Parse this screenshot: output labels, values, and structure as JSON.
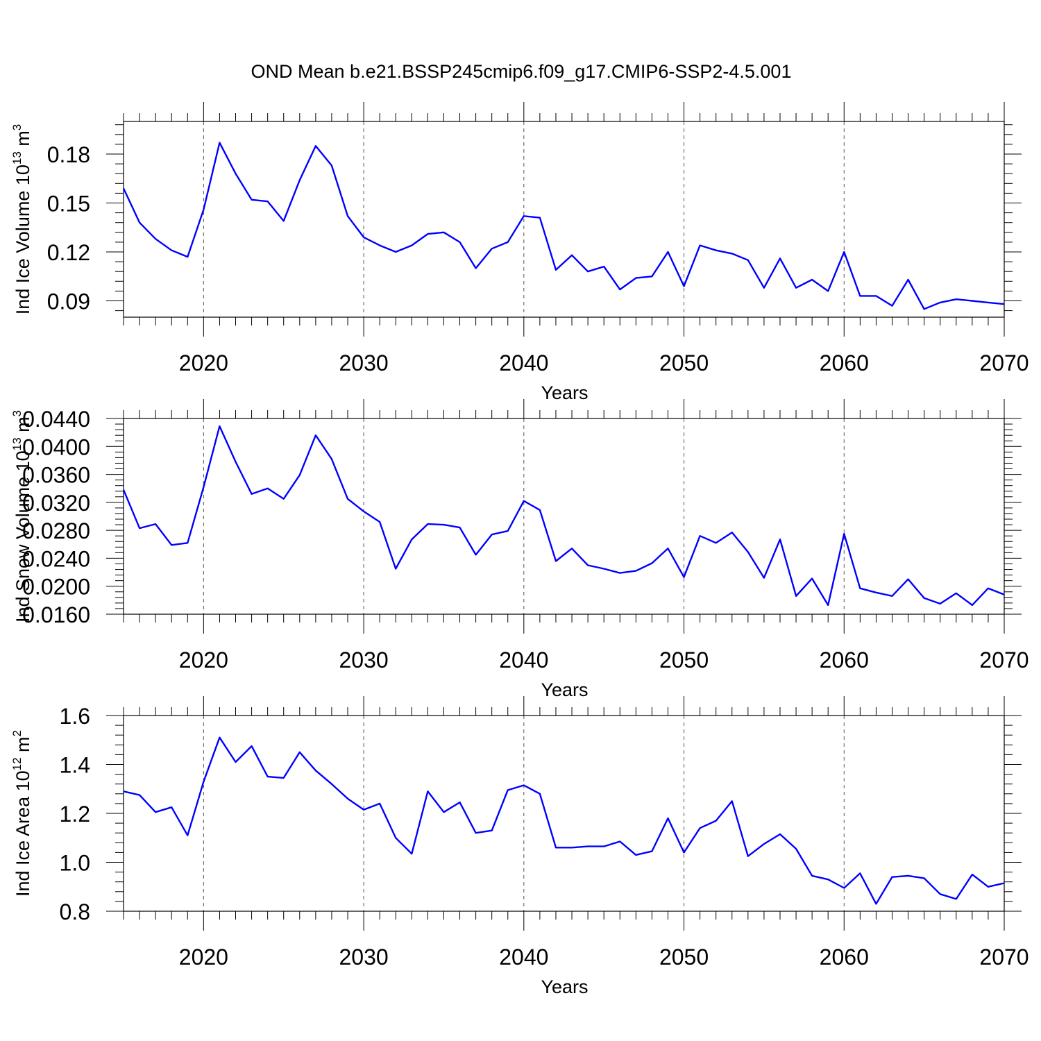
{
  "title": "OND Mean b.e21.BSSP245cmip6.f09_g17.CMIP6-SSP2-4.5.001",
  "colors": {
    "line": "#0000ff",
    "axes": "#000000",
    "grid": "#555555"
  },
  "chart_data": [
    {
      "type": "line",
      "ylabel": "Ind Ice Volume 10",
      "ylabel_exponent": "13",
      "ylabel_unit": " m",
      "ylabel_unit_exponent": "3",
      "xlabel": "Years",
      "xlim": [
        2015,
        2070
      ],
      "ylim": [
        0.08,
        0.2
      ],
      "xticks": [
        2020,
        2030,
        2040,
        2050,
        2060,
        2070
      ],
      "yticks": [
        0.09,
        0.12,
        0.15,
        0.18
      ],
      "ytick_labels": [
        "0.09",
        "0.12",
        "0.15",
        "0.18"
      ],
      "grid": "vertical dashed at major x ticks",
      "series": [
        {
          "x": [
            2015,
            2016,
            2017,
            2018,
            2019,
            2020,
            2021,
            2022,
            2023,
            2024,
            2025,
            2026,
            2027,
            2028,
            2029,
            2030,
            2031,
            2032,
            2033,
            2034,
            2035,
            2036,
            2037,
            2038,
            2039,
            2040,
            2041,
            2042,
            2043,
            2044,
            2045,
            2046,
            2047,
            2048,
            2049,
            2050,
            2051,
            2052,
            2053,
            2054,
            2055,
            2056,
            2057,
            2058,
            2059,
            2060,
            2061,
            2062,
            2063,
            2064,
            2065,
            2066,
            2067,
            2068,
            2069,
            2070
          ],
          "values": [
            0.159,
            0.138,
            0.128,
            0.121,
            0.117,
            0.146,
            0.187,
            0.168,
            0.152,
            0.151,
            0.139,
            0.164,
            0.185,
            0.173,
            0.142,
            0.129,
            0.124,
            0.12,
            0.124,
            0.131,
            0.132,
            0.126,
            0.11,
            0.122,
            0.126,
            0.142,
            0.141,
            0.109,
            0.118,
            0.108,
            0.111,
            0.097,
            0.104,
            0.105,
            0.12,
            0.099,
            0.124,
            0.121,
            0.119,
            0.115,
            0.098,
            0.116,
            0.098,
            0.103,
            0.096,
            0.12,
            0.093,
            0.093,
            0.087,
            0.103,
            0.085,
            0.089,
            0.091,
            0.09,
            0.089,
            0.088
          ]
        }
      ]
    },
    {
      "type": "line",
      "ylabel": "Ind Snow Volume 10",
      "ylabel_exponent": "13",
      "ylabel_unit": " m",
      "ylabel_unit_exponent": "3",
      "xlabel": "Years",
      "xlim": [
        2015,
        2070
      ],
      "ylim": [
        0.016,
        0.044
      ],
      "xticks": [
        2020,
        2030,
        2040,
        2050,
        2060,
        2070
      ],
      "yticks": [
        0.016,
        0.02,
        0.024,
        0.028,
        0.032,
        0.036,
        0.04,
        0.044
      ],
      "ytick_labels": [
        "0.0160",
        "0.0200",
        "0.0240",
        "0.0280",
        "0.0320",
        "0.0360",
        "0.0400",
        "0.0440"
      ],
      "grid": "vertical dashed at major x ticks",
      "series": [
        {
          "x": [
            2015,
            2016,
            2017,
            2018,
            2019,
            2020,
            2021,
            2022,
            2023,
            2024,
            2025,
            2026,
            2027,
            2028,
            2029,
            2030,
            2031,
            2032,
            2033,
            2034,
            2035,
            2036,
            2037,
            2038,
            2039,
            2040,
            2041,
            2042,
            2043,
            2044,
            2045,
            2046,
            2047,
            2048,
            2049,
            2050,
            2051,
            2052,
            2053,
            2054,
            2055,
            2056,
            2057,
            2058,
            2059,
            2060,
            2061,
            2062,
            2063,
            2064,
            2065,
            2066,
            2067,
            2068,
            2069,
            2070
          ],
          "values": [
            0.0338,
            0.0283,
            0.0289,
            0.0259,
            0.0262,
            0.0342,
            0.0429,
            0.0378,
            0.0332,
            0.034,
            0.0325,
            0.0359,
            0.0416,
            0.0382,
            0.0325,
            0.0307,
            0.0292,
            0.0225,
            0.0267,
            0.0289,
            0.0288,
            0.0284,
            0.0245,
            0.0274,
            0.0279,
            0.0322,
            0.0309,
            0.0236,
            0.0254,
            0.023,
            0.0225,
            0.0219,
            0.0222,
            0.0233,
            0.0254,
            0.0213,
            0.0272,
            0.0262,
            0.0277,
            0.0249,
            0.0212,
            0.0267,
            0.0186,
            0.0211,
            0.0173,
            0.0275,
            0.0197,
            0.0191,
            0.0186,
            0.021,
            0.0183,
            0.0175,
            0.019,
            0.0173,
            0.0197,
            0.0188
          ]
        }
      ]
    },
    {
      "type": "line",
      "ylabel": "Ind Ice Area 10",
      "ylabel_exponent": "12",
      "ylabel_unit": " m",
      "ylabel_unit_exponent": "2",
      "xlabel": "Years",
      "xlim": [
        2015,
        2070
      ],
      "ylim": [
        0.8,
        1.6
      ],
      "xticks": [
        2020,
        2030,
        2040,
        2050,
        2060,
        2070
      ],
      "yticks": [
        0.8,
        1.0,
        1.2,
        1.4,
        1.6
      ],
      "ytick_labels": [
        "0.8",
        "1.0",
        "1.2",
        "1.4",
        "1.6"
      ],
      "grid": "vertical dashed at major x ticks",
      "series": [
        {
          "x": [
            2015,
            2016,
            2017,
            2018,
            2019,
            2020,
            2021,
            2022,
            2023,
            2024,
            2025,
            2026,
            2027,
            2028,
            2029,
            2030,
            2031,
            2032,
            2033,
            2034,
            2035,
            2036,
            2037,
            2038,
            2039,
            2040,
            2041,
            2042,
            2043,
            2044,
            2045,
            2046,
            2047,
            2048,
            2049,
            2050,
            2051,
            2052,
            2053,
            2054,
            2055,
            2056,
            2057,
            2058,
            2059,
            2060,
            2061,
            2062,
            2063,
            2064,
            2065,
            2066,
            2067,
            2068,
            2069,
            2070
          ],
          "values": [
            1.29,
            1.275,
            1.205,
            1.225,
            1.11,
            1.33,
            1.51,
            1.41,
            1.475,
            1.35,
            1.345,
            1.45,
            1.375,
            1.32,
            1.26,
            1.215,
            1.24,
            1.1,
            1.035,
            1.29,
            1.205,
            1.245,
            1.12,
            1.13,
            1.295,
            1.315,
            1.28,
            1.06,
            1.06,
            1.065,
            1.065,
            1.085,
            1.03,
            1.045,
            1.18,
            1.04,
            1.14,
            1.17,
            1.25,
            1.025,
            1.075,
            1.115,
            1.055,
            0.945,
            0.93,
            0.895,
            0.955,
            0.83,
            0.94,
            0.945,
            0.935,
            0.87,
            0.85,
            0.95,
            0.9,
            0.915
          ]
        }
      ]
    }
  ]
}
